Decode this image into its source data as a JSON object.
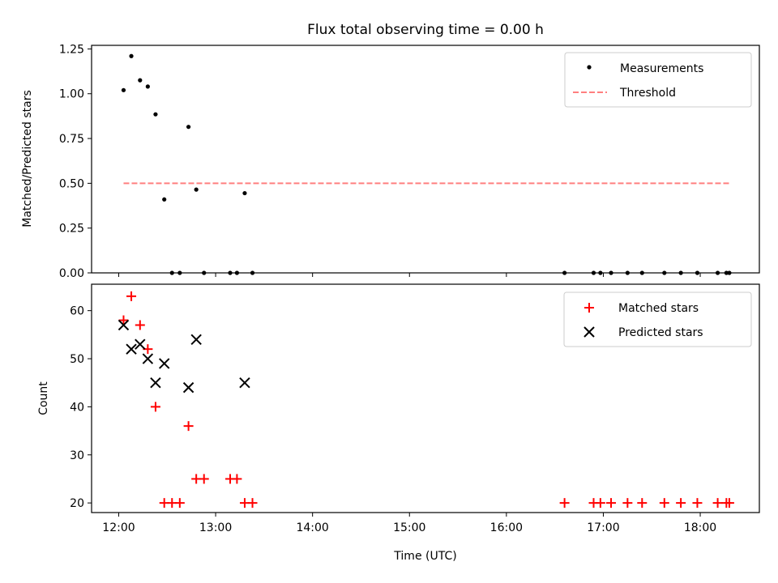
{
  "chart_data": [
    {
      "type": "scatter",
      "title": "Flux total observing time = 0.00 h",
      "ylabel": "Matched/Predicted stars",
      "xlabel": "",
      "xlim_hours": [
        11.72,
        18.61
      ],
      "ylim": [
        0,
        1.27
      ],
      "yticks": [
        0.0,
        0.25,
        0.5,
        0.75,
        1.0,
        1.25
      ],
      "ytick_labels": [
        "0.00",
        "0.25",
        "0.50",
        "0.75",
        "1.00",
        "1.25"
      ],
      "legend": {
        "placement": "top-right"
      },
      "series": [
        {
          "name": "Measurements",
          "color": "#000000",
          "marker": "dot",
          "x": [
            12.05,
            12.13,
            12.22,
            12.3,
            12.38,
            12.47,
            12.55,
            12.63,
            12.72,
            12.8,
            12.88,
            13.15,
            13.22,
            13.3,
            13.38,
            16.6,
            16.9,
            16.97,
            17.08,
            17.25,
            17.4,
            17.63,
            17.8,
            17.97,
            18.18,
            18.27,
            18.3
          ],
          "y": [
            1.02,
            1.21,
            1.075,
            1.04,
            0.885,
            0.41,
            0.0,
            0.0,
            0.815,
            0.465,
            0.0,
            0.0,
            0.0,
            0.445,
            0.0,
            0.0,
            0.0,
            0.0,
            0.0,
            0.0,
            0.0,
            0.0,
            0.0,
            0.0,
            0.0,
            0.0,
            0.0
          ]
        },
        {
          "name": "Threshold",
          "color": "#ff7f7f",
          "marker": "dashed-line",
          "x": [
            12.05,
            18.3
          ],
          "y": [
            0.5,
            0.5
          ]
        }
      ]
    },
    {
      "type": "scatter",
      "title": "",
      "ylabel": "Count",
      "xlabel": "Time (UTC)",
      "xlim_hours": [
        11.72,
        18.61
      ],
      "xticks_hours": [
        12,
        13,
        14,
        15,
        16,
        17,
        18
      ],
      "xtick_labels": [
        "12:00",
        "13:00",
        "14:00",
        "15:00",
        "16:00",
        "17:00",
        "18:00"
      ],
      "ylim": [
        18,
        65.5
      ],
      "yticks": [
        20,
        30,
        40,
        50,
        60
      ],
      "ytick_labels": [
        "20",
        "30",
        "40",
        "50",
        "60"
      ],
      "legend": {
        "placement": "top-right"
      },
      "series": [
        {
          "name": "Matched stars",
          "color": "#ff0000",
          "marker": "plus",
          "x": [
            12.05,
            12.13,
            12.22,
            12.3,
            12.38,
            12.47,
            12.55,
            12.63,
            12.72,
            12.8,
            12.88,
            13.15,
            13.22,
            13.3,
            13.38,
            16.6,
            16.9,
            16.97,
            17.08,
            17.25,
            17.4,
            17.63,
            17.8,
            17.97,
            18.18,
            18.27,
            18.3
          ],
          "y": [
            58,
            63,
            57,
            52,
            40,
            20,
            20,
            20,
            36,
            25,
            25,
            25,
            25,
            20,
            20,
            20,
            20,
            20,
            20,
            20,
            20,
            20,
            20,
            20,
            20,
            20,
            20
          ]
        },
        {
          "name": "Predicted stars",
          "color": "#000000",
          "marker": "x",
          "x": [
            12.05,
            12.13,
            12.22,
            12.3,
            12.38,
            12.47,
            12.72,
            12.8,
            13.3
          ],
          "y": [
            57,
            52,
            53,
            50,
            45,
            49,
            44,
            54,
            45
          ]
        }
      ]
    }
  ]
}
